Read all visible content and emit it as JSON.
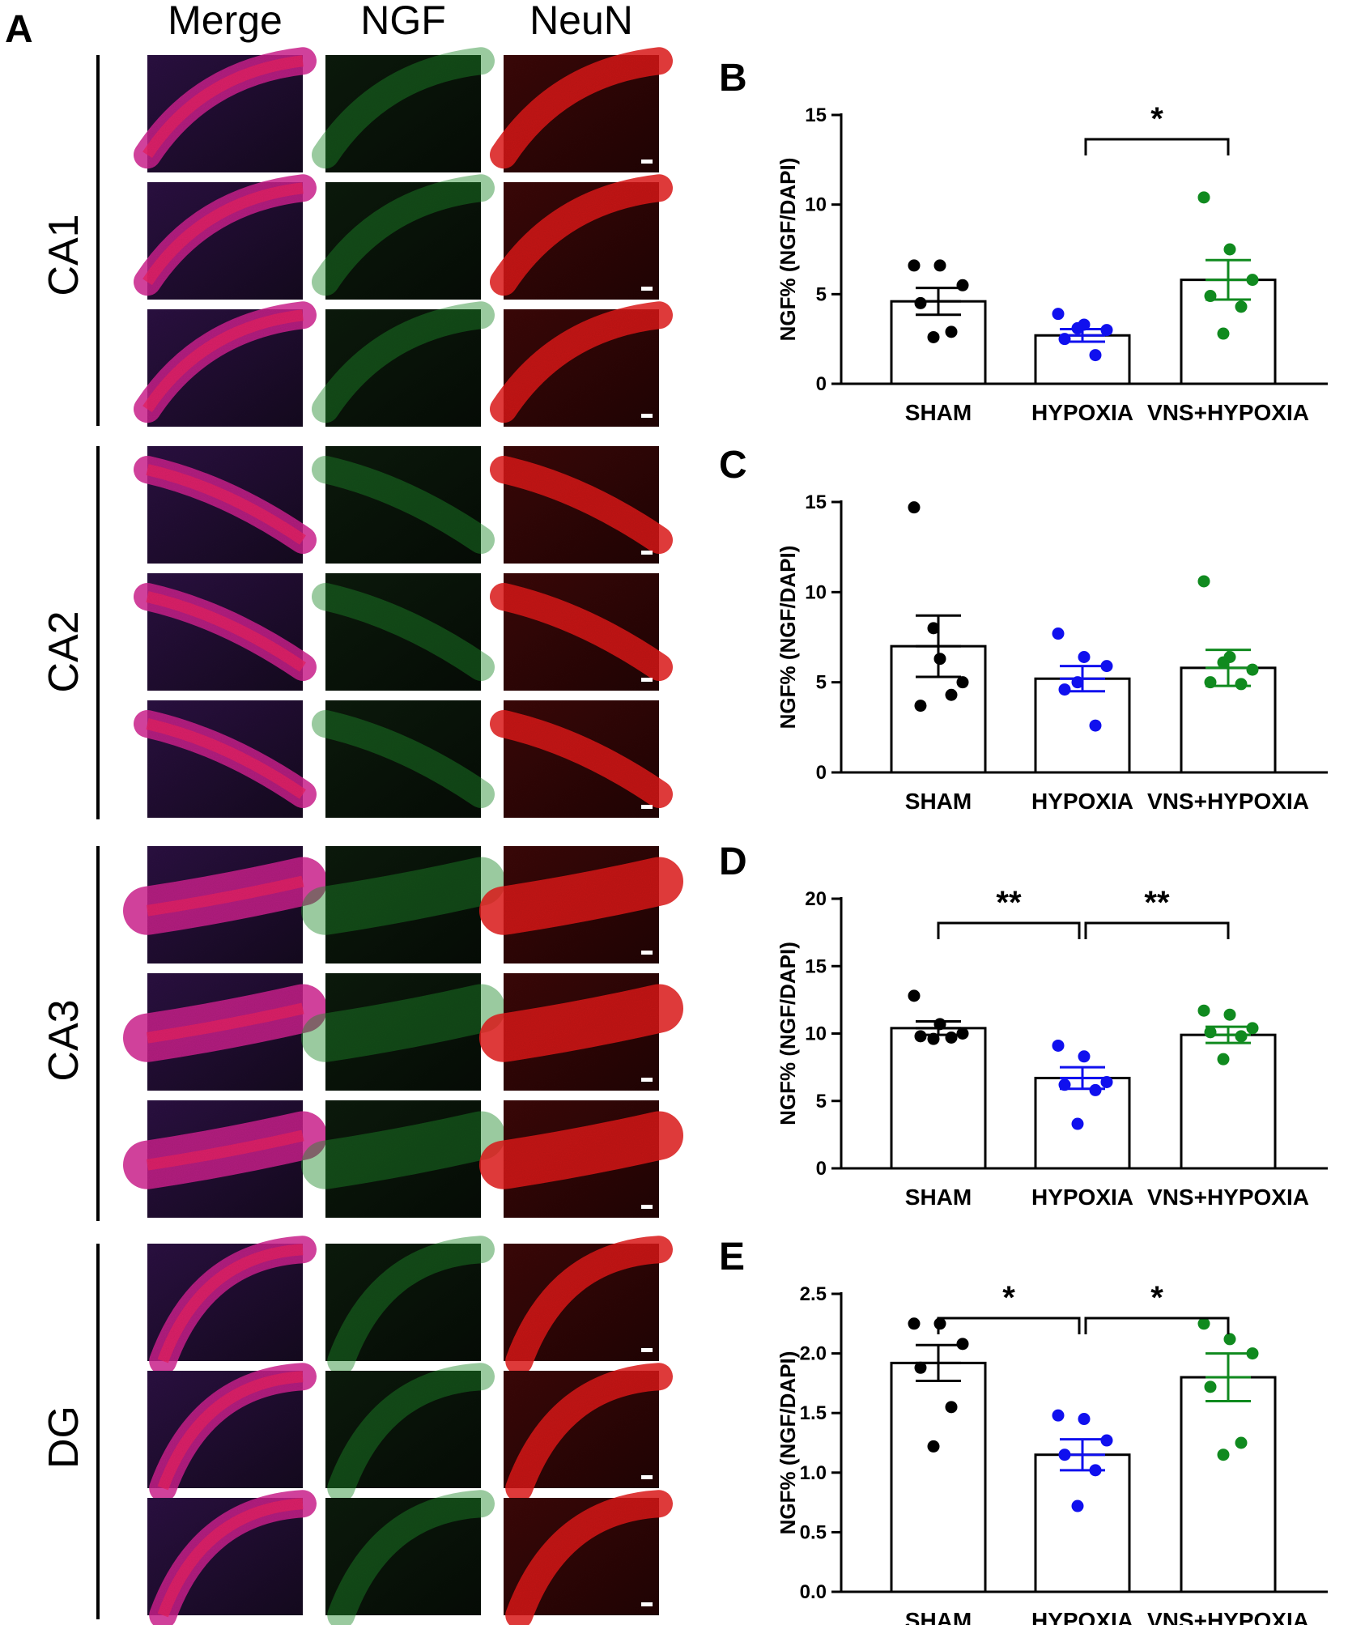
{
  "panel_a": {
    "letter": "A",
    "columns": [
      "Merge",
      "NGF",
      "NeuN"
    ],
    "regions": [
      "CA1",
      "CA2",
      "CA3",
      "DG"
    ]
  },
  "colors": {
    "SHAM": "#000000",
    "HYPOXIA": "#1010ee",
    "VNS+HYPOXIA": "#108a1f",
    "merge_magenta": "#c8208a",
    "ngf_green": "#1e8a2a",
    "neun_red": "#d81818"
  },
  "chart_data": [
    {
      "panel": "B",
      "type": "bar",
      "categories": [
        "SHAM",
        "HYPOXIA",
        "VNS+HYPOXIA"
      ],
      "ylabel": "NGF% (NGF/DAPI)",
      "ylim": [
        0,
        15
      ],
      "yticks": [
        "0",
        "5",
        "10",
        "15"
      ],
      "means": [
        4.6,
        2.7,
        5.8
      ],
      "sem": [
        0.75,
        0.35,
        1.1
      ],
      "points": [
        [
          6.6,
          6.6,
          5.5,
          4.5,
          2.9,
          2.6
        ],
        [
          3.9,
          3.3,
          3.0,
          2.5,
          1.6,
          3.1
        ],
        [
          10.4,
          7.5,
          5.8,
          4.9,
          4.3,
          2.8
        ]
      ],
      "significance": [
        {
          "from": 1,
          "to": 2,
          "label": "*"
        }
      ]
    },
    {
      "panel": "C",
      "type": "bar",
      "categories": [
        "SHAM",
        "HYPOXIA",
        "VNS+HYPOXIA"
      ],
      "ylabel": "NGF% (NGF/DAPI)",
      "ylim": [
        0,
        15
      ],
      "yticks": [
        "0",
        "5",
        "10",
        "15"
      ],
      "means": [
        7.0,
        5.2,
        5.8
      ],
      "sem": [
        1.7,
        0.7,
        1.0
      ],
      "points": [
        [
          14.7,
          6.3,
          5.0,
          3.7,
          4.3,
          8.0
        ],
        [
          7.7,
          6.4,
          5.9,
          4.6,
          2.6,
          5.0
        ],
        [
          10.6,
          6.4,
          5.7,
          5.0,
          4.9,
          6.1
        ]
      ],
      "significance": []
    },
    {
      "panel": "D",
      "type": "bar",
      "categories": [
        "SHAM",
        "HYPOXIA",
        "VNS+HYPOXIA"
      ],
      "ylabel": "NGF% (NGF/DAPI)",
      "ylim": [
        0,
        20
      ],
      "yticks": [
        "0",
        "5",
        "10",
        "15",
        "20"
      ],
      "means": [
        10.4,
        6.7,
        9.9
      ],
      "sem": [
        0.5,
        0.8,
        0.6
      ],
      "points": [
        [
          12.8,
          10.7,
          10.0,
          9.8,
          9.7,
          9.6
        ],
        [
          9.1,
          8.3,
          6.4,
          6.2,
          5.8,
          3.3
        ],
        [
          11.7,
          11.4,
          10.4,
          10.1,
          9.8,
          8.1
        ]
      ],
      "significance": [
        {
          "from": 0,
          "to": 1,
          "label": "**"
        },
        {
          "from": 1,
          "to": 2,
          "label": "**"
        }
      ]
    },
    {
      "panel": "E",
      "type": "bar",
      "categories": [
        "SHAM",
        "HYPOXIA",
        "VNS+HYPOXIA"
      ],
      "ylabel": "NGF% (NGF/DAPI)",
      "ylim": [
        0,
        2.5
      ],
      "yticks": [
        "0.0",
        "0.5",
        "1.0",
        "1.5",
        "2.0",
        "2.5"
      ],
      "means": [
        1.92,
        1.15,
        1.8
      ],
      "sem": [
        0.15,
        0.13,
        0.2
      ],
      "points": [
        [
          2.25,
          2.25,
          2.08,
          1.88,
          1.55,
          1.22
        ],
        [
          1.48,
          1.45,
          1.27,
          1.15,
          1.02,
          0.72
        ],
        [
          2.25,
          2.12,
          2.0,
          1.72,
          1.25,
          1.15
        ]
      ],
      "significance": [
        {
          "from": 0,
          "to": 1,
          "label": "*"
        },
        {
          "from": 1,
          "to": 2,
          "label": "*"
        }
      ]
    }
  ]
}
